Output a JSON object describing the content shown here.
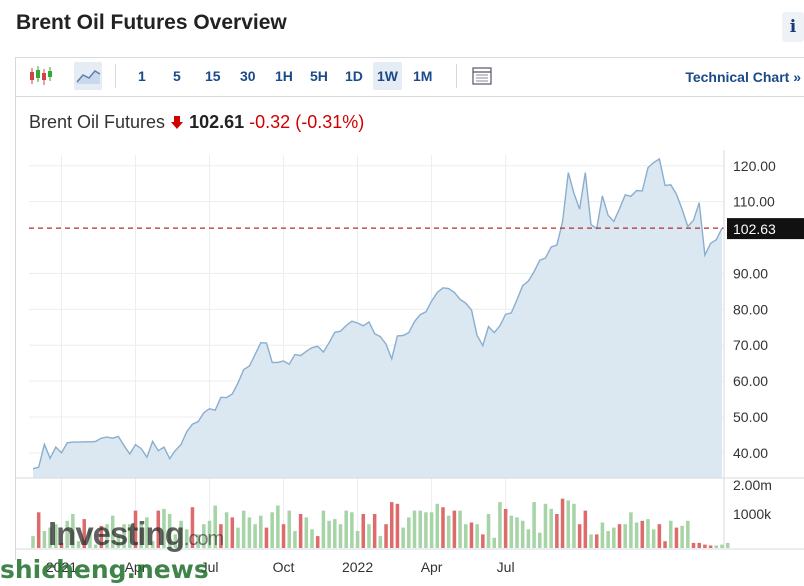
{
  "page": {
    "title": "Brent Oil Futures Overview",
    "info_label": "i"
  },
  "toolbar": {
    "intervals": [
      "1",
      "5",
      "15",
      "30",
      "1H",
      "5H",
      "1D",
      "1W",
      "1M"
    ],
    "active_interval": "1W",
    "technical_chart_label": "Technical Chart",
    "technical_chart_chevron": "»",
    "icons": [
      "candlestick-chart-icon",
      "area-chart-icon",
      "table-view-icon"
    ]
  },
  "quote": {
    "name": "Brent Oil Futures",
    "price": "102.61",
    "change": "-0.32",
    "change_pct": "(-0.31%)",
    "direction": "down"
  },
  "watermark": {
    "brand": "Investing",
    "suffix": ".com",
    "site": "shicheng.news"
  },
  "chart_data": {
    "type": "area",
    "current_value": 102.63,
    "current_label": "102.63",
    "x_tick_labels": [
      "2021",
      "Apr",
      "Jul",
      "Oct",
      "2022",
      "Apr",
      "Jul"
    ],
    "y_tick_labels": [
      "40.00",
      "50.00",
      "60.00",
      "70.00",
      "80.00",
      "90.00",
      "110.00",
      "120.00"
    ],
    "y_ticks": [
      40,
      50,
      60,
      70,
      80,
      90,
      110,
      120
    ],
    "ylim": [
      33,
      123
    ],
    "x_ticks_week_index": [
      5,
      18,
      31,
      44,
      57,
      70,
      83
    ],
    "volume_tick_labels": [
      "2.00m",
      "1000k"
    ],
    "grid": true,
    "colors": {
      "line": "#8aaed0",
      "fill": "#dbe7f1",
      "ref_line": "#b03030",
      "label_bg": "#111111",
      "vol_up": "#a6d4a6",
      "vol_down": "#de6b6b"
    },
    "series": [
      {
        "values": [
          35.6,
          36,
          42.4,
          38.5,
          41.6,
          40,
          42.8,
          43,
          43,
          43.1,
          43.1,
          43.2,
          44.1,
          44.4,
          44.1,
          44.6,
          42,
          39.7,
          42.3,
          41.2,
          38.8,
          43.2,
          40.6,
          41.6,
          38.4,
          40.7,
          42.3,
          45.9,
          48,
          48.7,
          51.2,
          52.3,
          51.9,
          55.5,
          55.4,
          56.4,
          59.5,
          63.2,
          64.2,
          67.4,
          70.7,
          70.6,
          65.2,
          65.2,
          65.6,
          64.7,
          67.4,
          67.1,
          68.3,
          69.3,
          69.7,
          68.1,
          70.7,
          73.6,
          73.9,
          75.5,
          76.7,
          76.2,
          75.4,
          76.5,
          73.2,
          72.4,
          70.3,
          66.2,
          72.6,
          72.7,
          73.5,
          76.6,
          78.5,
          79.3,
          82.3,
          84.7,
          86,
          85.8,
          84.7,
          82.8,
          81.7,
          79.8,
          72.7,
          69.9,
          75.2,
          73.5,
          75.4,
          78.6,
          79,
          82.7,
          86.6,
          87.9,
          90.5,
          93.7,
          94.3,
          97.4,
          97.9,
          104.5,
          118.1,
          112.3,
          107.9,
          118.1,
          103.6,
          102.5,
          111.6,
          106.2,
          104.5,
          108,
          111.9,
          111.5,
          113.1,
          113,
          119.5,
          120.9,
          121.9,
          114.5,
          114.7,
          112.1,
          107.9,
          103.1,
          104.8,
          109.7,
          95.1,
          98.4,
          99.4,
          102.6
        ]
      }
    ],
    "volume": {
      "max": 2000,
      "values": [
        350,
        1050,
        500,
        600,
        700,
        150,
        800,
        1000,
        200,
        850,
        550,
        100,
        650,
        700,
        950,
        350,
        700,
        700,
        1100,
        700,
        900,
        200,
        1100,
        1150,
        1000,
        400,
        800,
        550,
        1200,
        400,
        700,
        800,
        1250,
        700,
        1050,
        900,
        600,
        1100,
        900,
        700,
        950,
        600,
        1050,
        1250,
        700,
        1100,
        500,
        1000,
        900,
        550,
        350,
        1100,
        800,
        850,
        700,
        1100,
        1050,
        500,
        1000,
        700,
        1000,
        350,
        700,
        1350,
        1300,
        600,
        900,
        1100,
        1100,
        1050,
        1050,
        1300,
        1200,
        950,
        1100,
        1100,
        700,
        750,
        700,
        400,
        1000,
        300,
        1350,
        1150,
        950,
        900,
        800,
        550,
        1350,
        450,
        1300,
        1150,
        1000,
        1450,
        1400,
        1300,
        700,
        1100,
        400,
        400,
        750,
        500,
        600,
        700,
        700,
        1050,
        750,
        800,
        850,
        550,
        700,
        200,
        800,
        600,
        650,
        800,
        150,
        150,
        100,
        75,
        75,
        100,
        150
      ],
      "down": [
        1,
        5,
        9,
        12,
        18,
        22,
        28,
        33,
        35,
        41,
        44,
        47,
        50,
        58,
        60,
        62,
        63,
        64,
        72,
        74,
        77,
        79,
        83,
        92,
        93,
        96,
        97,
        99,
        103,
        107,
        110,
        111,
        113,
        116,
        117,
        118,
        119
      ]
    }
  }
}
